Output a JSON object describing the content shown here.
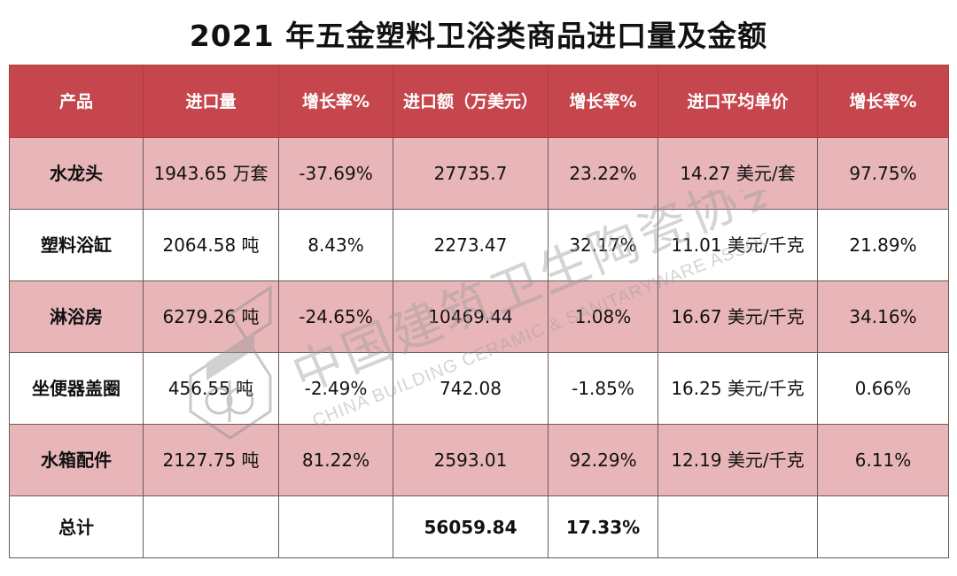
{
  "title": "2021 年五金塑料卫浴类商品进口量及金额",
  "headers": [
    "产品",
    "进口量",
    "增长率%",
    "进口额（万美元）",
    "增长率%",
    "进口平均单价",
    "增长率%"
  ],
  "rows": [
    {
      "product": "水龙头",
      "volume": "1943.65 万套",
      "volume_growth": "-37.69%",
      "amount": "27735.7",
      "amount_growth": "23.22%",
      "unit_price": "14.27 美元/套",
      "price_growth": "97.75%"
    },
    {
      "product": "塑料浴缸",
      "volume": "2064.58 吨",
      "volume_growth": "8.43%",
      "amount": "2273.47",
      "amount_growth": "32.17%",
      "unit_price": "11.01 美元/千克",
      "price_growth": "21.89%"
    },
    {
      "product": "淋浴房",
      "volume": "6279.26 吨",
      "volume_growth": "-24.65%",
      "amount": "10469.44",
      "amount_growth": "1.08%",
      "unit_price": "16.67 美元/千克",
      "price_growth": "34.16%"
    },
    {
      "product": "坐便器盖圈",
      "volume": "456.55 吨",
      "volume_growth": "-2.49%",
      "amount": "742.08",
      "amount_growth": "-1.85%",
      "unit_price": "16.25 美元/千克",
      "price_growth": "0.66%"
    },
    {
      "product": "水箱配件",
      "volume": "2127.75 吨",
      "volume_growth": "81.22%",
      "amount": "2593.01",
      "amount_growth": "92.29%",
      "unit_price": "12.19 美元/千克",
      "price_growth": "6.11%"
    }
  ],
  "total": {
    "label": "总计",
    "volume": "",
    "volume_growth": "",
    "amount": "56059.84",
    "amount_growth": "17.33%",
    "unit_price": "",
    "price_growth": ""
  },
  "watermark": {
    "cn_text": "中国建筑卫生陶瓷协会",
    "en_text": "CHINA BUILDING CERAMIC & SANITARYWARE ASSOCIATION",
    "color": "#9a9a9a"
  },
  "colors": {
    "header_bg": "#c5464d",
    "row_shade": "#e8b6b9",
    "row_plain": "#ffffff"
  }
}
